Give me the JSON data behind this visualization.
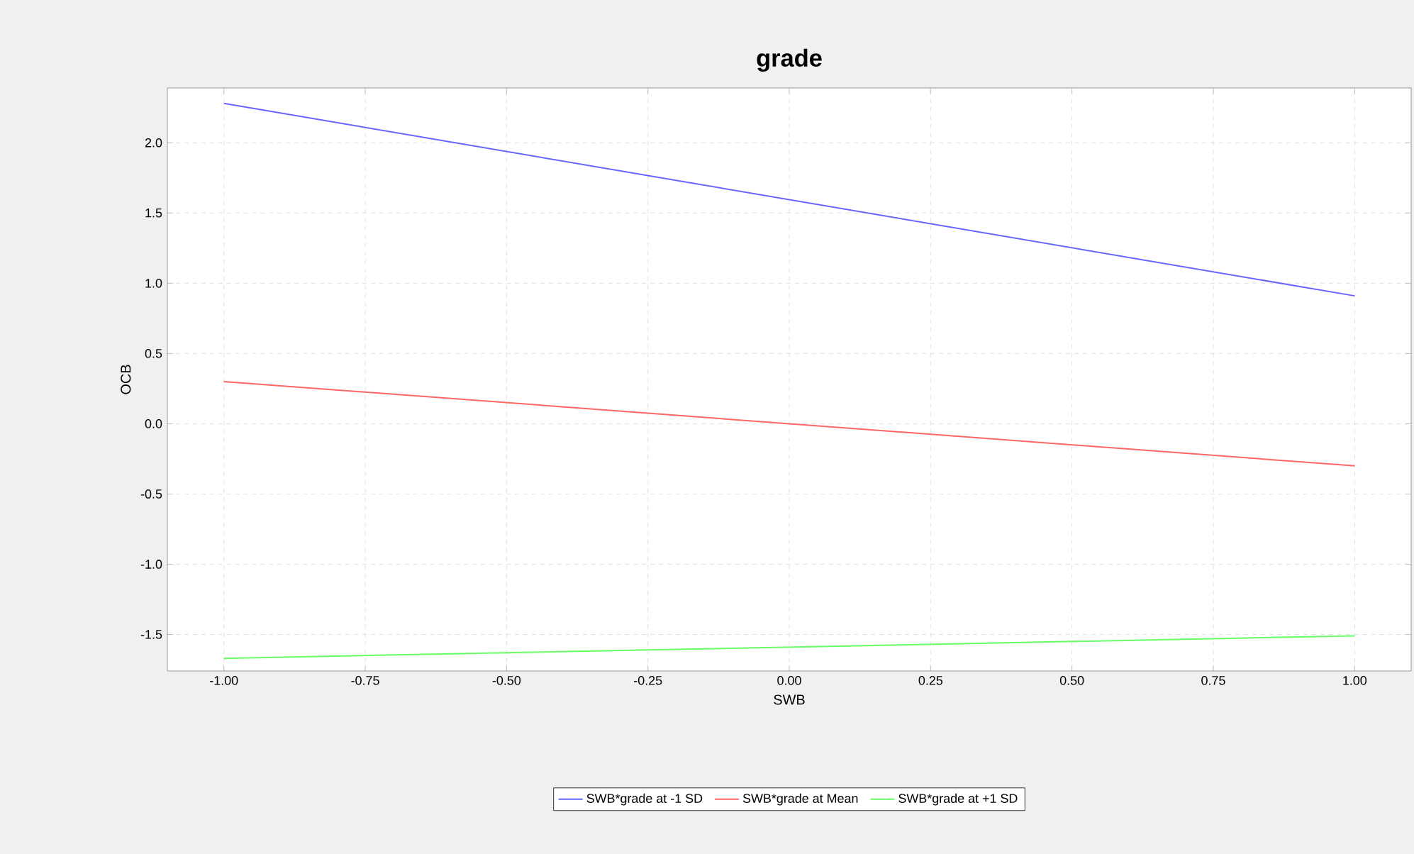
{
  "chart_data": {
    "type": "line",
    "title": "grade",
    "xlabel": "SWB",
    "ylabel": "OCB",
    "x": [
      -1,
      1
    ],
    "xlim": [
      -1.1,
      1.1
    ],
    "ylim": [
      -1.76,
      2.39
    ],
    "xticks": [
      {
        "value": -1,
        "label": "-1.00"
      },
      {
        "value": -0.75,
        "label": "-0.75"
      },
      {
        "value": -0.5,
        "label": "-0.50"
      },
      {
        "value": -0.25,
        "label": "-0.25"
      },
      {
        "value": 0,
        "label": "0.00"
      },
      {
        "value": 0.25,
        "label": "0.25"
      },
      {
        "value": 0.5,
        "label": "0.50"
      },
      {
        "value": 0.75,
        "label": "0.75"
      },
      {
        "value": 1,
        "label": "1.00"
      }
    ],
    "yticks": [
      {
        "value": -1.5,
        "label": "-1.5"
      },
      {
        "value": -1,
        "label": "-1.0"
      },
      {
        "value": -0.5,
        "label": "-0.5"
      },
      {
        "value": 0,
        "label": "0.0"
      },
      {
        "value": 0.5,
        "label": "0.5"
      },
      {
        "value": 1,
        "label": "1.0"
      },
      {
        "value": 1.5,
        "label": "1.5"
      },
      {
        "value": 2,
        "label": "2.0"
      }
    ],
    "grid": true,
    "legend": "bottom",
    "series": [
      {
        "name": "SWB*grade at -1 SD",
        "color": "#6666ff",
        "values": [
          2.28,
          0.91
        ]
      },
      {
        "name": "SWB*grade at Mean",
        "color": "#ff6666",
        "values": [
          0.3,
          -0.3
        ]
      },
      {
        "name": "SWB*grade at +1 SD",
        "color": "#66ff66",
        "values": [
          -1.67,
          -1.51
        ]
      }
    ]
  }
}
